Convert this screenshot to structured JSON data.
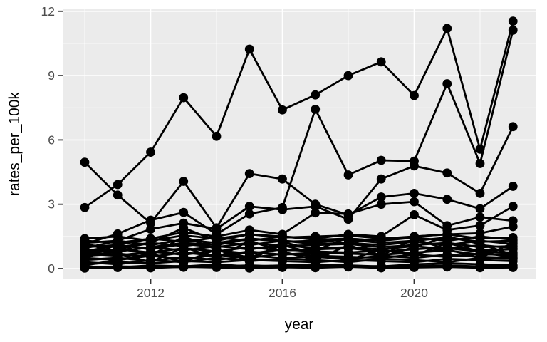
{
  "chart_data": {
    "type": "line",
    "title": "",
    "xlabel": "year",
    "ylabel": "rates_per_100k",
    "x": [
      2010,
      2011,
      2012,
      2013,
      2014,
      2015,
      2016,
      2017,
      2018,
      2019,
      2020,
      2021,
      2022,
      2023
    ],
    "xticks": [
      2012,
      2016,
      2020
    ],
    "x_minor_ticks": [
      2010,
      2014,
      2018,
      2022
    ],
    "yticks": [
      0,
      3,
      6,
      9,
      12
    ],
    "y_minor_ticks": [
      1.5,
      4.5,
      7.5,
      10.5
    ],
    "ylim": [
      0,
      12.2
    ],
    "xlim": [
      2010,
      2023
    ],
    "grid": "major and minor, white on grey panel",
    "legend_position": "none",
    "marker": "filled circle",
    "series": [
      {
        "values": [
          2.85,
          3.92,
          5.43,
          7.97,
          6.17,
          10.23,
          7.4,
          8.1,
          9.0,
          9.64,
          8.07,
          11.2,
          5.57,
          11.54
        ]
      },
      {
        "values": [
          4.96,
          3.43,
          2.12,
          4.07,
          1.9,
          4.43,
          4.18,
          3.0,
          2.5,
          3.34,
          3.51,
          3.23,
          2.79,
          3.84
        ]
      },
      {
        "values": [
          1.15,
          1.62,
          2.26,
          2.62,
          1.6,
          2.55,
          2.85,
          7.43,
          4.37,
          5.05,
          5.01,
          8.62,
          4.9,
          11.12
        ]
      },
      {
        "values": [
          0.95,
          1.3,
          1.84,
          2.12,
          1.85,
          2.9,
          2.75,
          2.9,
          2.3,
          4.18,
          4.79,
          4.46,
          3.51,
          6.62
        ]
      },
      {
        "values": [
          0.8,
          1.1,
          1.4,
          1.7,
          1.5,
          1.8,
          1.6,
          2.6,
          2.55,
          3.0,
          3.12,
          2.0,
          2.4,
          2.23
        ]
      },
      {
        "values": [
          0.7,
          0.9,
          1.2,
          1.9,
          1.3,
          1.6,
          1.5,
          1.4,
          1.6,
          1.5,
          2.51,
          1.8,
          2.01,
          2.9
        ]
      },
      {
        "values": [
          0.6,
          0.8,
          1.0,
          1.2,
          1.1,
          1.4,
          1.3,
          1.2,
          1.4,
          1.3,
          1.5,
          1.6,
          1.65,
          1.96
        ]
      },
      {
        "values": [
          0.05,
          0.1,
          0.08,
          0.12,
          0.1,
          0.15,
          0.1,
          0.12,
          0.08,
          0.1,
          0.12,
          0.15,
          0.1,
          0.12
        ]
      },
      {
        "values": [
          0.1,
          0.05,
          0.15,
          0.1,
          0.2,
          0.1,
          0.15,
          0.2,
          0.15,
          0.1,
          0.2,
          0.25,
          0.2,
          0.15
        ]
      },
      {
        "values": [
          0.2,
          0.3,
          0.25,
          0.35,
          0.3,
          0.4,
          0.35,
          0.3,
          0.4,
          0.35,
          0.3,
          0.45,
          0.4,
          0.35
        ]
      },
      {
        "values": [
          0.3,
          0.2,
          0.4,
          0.3,
          0.5,
          0.35,
          0.45,
          0.4,
          0.3,
          0.45,
          0.4,
          0.3,
          0.5,
          0.45
        ]
      },
      {
        "values": [
          0.4,
          0.5,
          0.35,
          0.55,
          0.4,
          0.6,
          0.5,
          0.55,
          0.45,
          0.6,
          0.5,
          0.65,
          0.55,
          0.5
        ]
      },
      {
        "values": [
          0.5,
          0.4,
          0.6,
          0.45,
          0.65,
          0.5,
          0.7,
          0.6,
          0.55,
          0.5,
          0.65,
          0.55,
          0.7,
          0.6
        ]
      },
      {
        "values": [
          0.6,
          0.7,
          0.55,
          0.75,
          0.6,
          0.8,
          0.65,
          0.75,
          0.7,
          0.65,
          0.75,
          0.85,
          0.65,
          0.7
        ]
      },
      {
        "values": [
          0.7,
          0.6,
          0.8,
          0.65,
          0.85,
          0.7,
          0.9,
          0.8,
          0.75,
          0.85,
          0.7,
          0.95,
          0.8,
          0.75
        ]
      },
      {
        "values": [
          0.8,
          0.9,
          0.75,
          0.95,
          0.8,
          1.0,
          0.85,
          0.9,
          0.95,
          0.8,
          0.9,
          1.0,
          0.85,
          0.9
        ]
      },
      {
        "values": [
          0.9,
          0.8,
          1.0,
          0.85,
          1.05,
          0.9,
          1.1,
          0.95,
          1.0,
          0.9,
          1.05,
          0.9,
          1.1,
          0.95
        ]
      },
      {
        "values": [
          1.0,
          1.1,
          0.9,
          1.15,
          1.0,
          1.2,
          1.05,
          1.1,
          1.15,
          1.0,
          1.1,
          1.2,
          1.0,
          1.05
        ]
      },
      {
        "values": [
          1.1,
          1.0,
          1.2,
          1.05,
          1.25,
          1.1,
          1.3,
          1.15,
          1.2,
          1.1,
          1.25,
          1.1,
          1.3,
          1.15
        ]
      },
      {
        "values": [
          1.2,
          1.3,
          1.1,
          1.35,
          1.2,
          1.4,
          1.25,
          1.3,
          1.35,
          1.2,
          1.3,
          1.45,
          1.25,
          1.3
        ]
      },
      {
        "values": [
          1.3,
          1.2,
          1.4,
          1.25,
          1.45,
          1.3,
          1.5,
          1.35,
          1.4,
          1.3,
          1.45,
          1.3,
          1.5,
          1.35
        ]
      },
      {
        "values": [
          1.4,
          1.5,
          1.3,
          1.55,
          1.4,
          1.6,
          1.45,
          1.5,
          1.55,
          1.4,
          1.5,
          1.6,
          1.4,
          1.45
        ]
      },
      {
        "values": [
          0.15,
          0.4,
          0.7,
          0.3,
          0.9,
          0.5,
          1.1,
          0.7,
          0.4,
          0.9,
          0.6,
          1.2,
          0.8,
          0.5
        ]
      },
      {
        "values": [
          1.2,
          0.7,
          0.3,
          1.0,
          0.5,
          1.3,
          0.8,
          0.4,
          1.1,
          0.6,
          1.4,
          0.9,
          0.5,
          1.2
        ]
      },
      {
        "values": [
          0.45,
          1.15,
          0.6,
          1.5,
          0.9,
          0.35,
          1.25,
          0.85,
          1.45,
          0.55,
          1.0,
          1.5,
          1.15,
          0.65
        ]
      },
      {
        "values": [
          0.05,
          0.08,
          0.1,
          0.06,
          0.12,
          0.08,
          0.05,
          0.1,
          0.07,
          0.12,
          0.06,
          0.1,
          0.08,
          0.06
        ]
      },
      {
        "values": [
          0.02,
          0.05,
          0.03,
          0.08,
          0.05,
          0.02,
          0.06,
          0.04,
          0.08,
          0.03,
          0.05,
          0.07,
          0.04,
          0.05
        ]
      }
    ]
  },
  "style": {
    "panel_bg": "#EBEBEB",
    "grid_color": "#FFFFFF",
    "line_color": "#000000",
    "point_color": "#000000",
    "tick_mark_color": "#333333",
    "tick_label_color": "#4D4D4D",
    "axis_title_color": "#000000",
    "background": "#FFFFFF"
  }
}
